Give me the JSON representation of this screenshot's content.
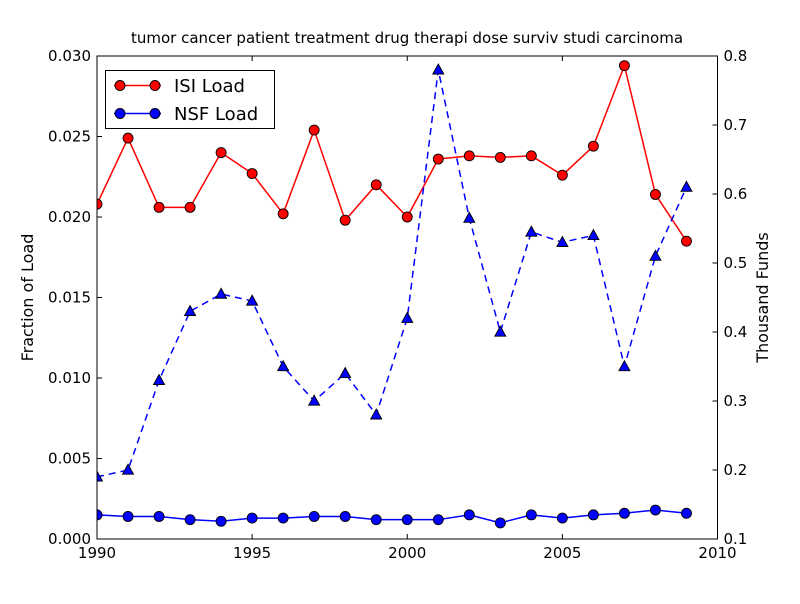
{
  "chart_data": {
    "type": "line",
    "title": "tumor cancer patient treatment drug therapi dose surviv studi carcinoma",
    "xlabel": "",
    "ylabel_left": "Fraction of Load",
    "ylabel_right": "Thousand Funds",
    "xlim": [
      1990,
      2010
    ],
    "ylim_left": [
      0.0,
      0.03
    ],
    "ylim_right": [
      0.1,
      0.8
    ],
    "xticks": [
      "1990",
      "1995",
      "2000",
      "2005",
      "2010"
    ],
    "yticks_left": [
      "0.000",
      "0.005",
      "0.010",
      "0.015",
      "0.020",
      "0.025",
      "0.030"
    ],
    "yticks_right": [
      "0.1",
      "0.2",
      "0.3",
      "0.4",
      "0.5",
      "0.6",
      "0.7",
      "0.8"
    ],
    "grid": false,
    "legend": {
      "position": "upper-left",
      "entries": [
        "ISI Load",
        "NSF Load"
      ]
    },
    "x": [
      1990,
      1991,
      1992,
      1993,
      1994,
      1995,
      1996,
      1997,
      1998,
      1999,
      2000,
      2001,
      2002,
      2003,
      2004,
      2005,
      2006,
      2007,
      2008,
      2009
    ],
    "series": [
      {
        "name": "ISI Load",
        "axis": "left",
        "color": "#ff0000",
        "line_style": "solid",
        "marker": "circle",
        "in_legend": true,
        "values": [
          0.0208,
          0.0249,
          0.0206,
          0.0206,
          0.024,
          0.0227,
          0.0202,
          0.0254,
          0.0198,
          0.022,
          0.02,
          0.0236,
          0.0238,
          0.0237,
          0.0238,
          0.0226,
          0.0244,
          0.0294,
          0.0214,
          0.0185
        ]
      },
      {
        "name": "NSF Load",
        "axis": "left",
        "color": "#0000ff",
        "line_style": "solid",
        "marker": "circle",
        "in_legend": true,
        "values": [
          0.0015,
          0.0014,
          0.0014,
          0.0012,
          0.0011,
          0.0013,
          0.0013,
          0.0014,
          0.0014,
          0.0012,
          0.0012,
          0.0012,
          0.0015,
          0.001,
          0.0015,
          0.0013,
          0.0015,
          0.0016,
          0.0018,
          0.0016
        ]
      },
      {
        "name": "Thousand Funds",
        "axis": "right",
        "color": "#0000ff",
        "line_style": "dashed",
        "marker": "triangle-up",
        "in_legend": false,
        "values": [
          0.19,
          0.2,
          0.33,
          0.43,
          0.455,
          0.445,
          0.35,
          0.3,
          0.34,
          0.28,
          0.42,
          0.78,
          0.565,
          0.4,
          0.545,
          0.53,
          0.54,
          0.35,
          0.51,
          0.61
        ]
      }
    ],
    "colors": {
      "isi_series": "#ff0000",
      "nsf_series": "#0000ff",
      "frame": "#000000",
      "background": "#ffffff"
    }
  }
}
